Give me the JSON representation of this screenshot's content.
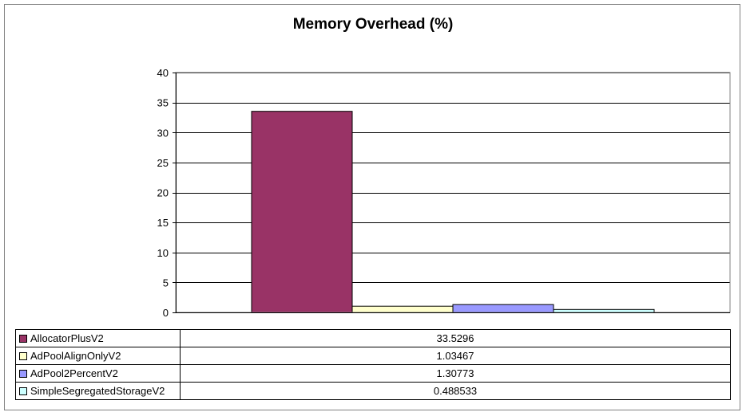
{
  "chart_data": {
    "type": "bar",
    "title": "Memory Overhead (%)",
    "xlabel": "",
    "ylabel": "",
    "ylim": [
      0,
      40
    ],
    "yticks": [
      0,
      5,
      10,
      15,
      20,
      25,
      30,
      35,
      40
    ],
    "grid": true,
    "legend": "data-table",
    "series": [
      {
        "name": "AllocatorPlusV2",
        "value": 33.5296,
        "value_label": "33.5296",
        "color": "#993366"
      },
      {
        "name": "AdPoolAlignOnlyV2",
        "value": 1.03467,
        "value_label": "1.03467",
        "color": "#FFFFCC"
      },
      {
        "name": "AdPool2PercentV2",
        "value": 1.30773,
        "value_label": "1.30773",
        "color": "#9999FF"
      },
      {
        "name": "SimpleSegregatedStorageV2",
        "value": 0.488533,
        "value_label": "0.488533",
        "color": "#CCFFFF"
      }
    ]
  }
}
